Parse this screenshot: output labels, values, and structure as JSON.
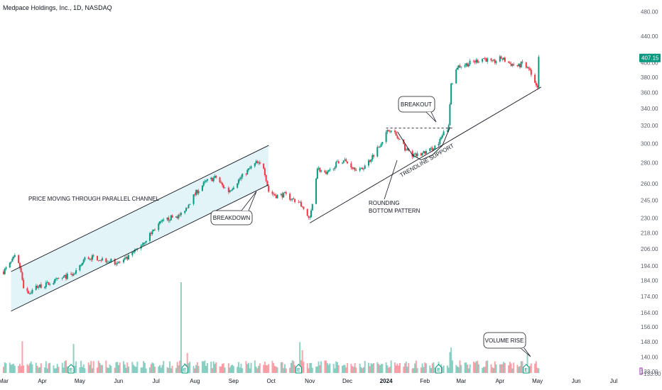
{
  "header": {
    "title": "Medpace Holdings, Inc., 1D, NASDAQ"
  },
  "colors": {
    "up": "#089981",
    "down": "#f23645",
    "channel_fill": "#e3f4f8",
    "price_tag": "#089981",
    "axis_text": "#5d606b",
    "earnings": "#089981",
    "flag": "#9c27b0"
  },
  "chart_data": {
    "type": "candlestick",
    "title": "Medpace Holdings, Inc., 1D, NASDAQ",
    "scale": "log",
    "ylim": [
      133,
      482
    ],
    "grid": false,
    "y_ticks": [
      480,
      440,
      400,
      380,
      360,
      340,
      320,
      300,
      280,
      260,
      245,
      230,
      218,
      206,
      194,
      184,
      174,
      164,
      156,
      148,
      140,
      133
    ],
    "y_tick_labels": [
      "480.00",
      "440.00",
      "400.00",
      "380.00",
      "360.00",
      "340.00",
      "320.00",
      "300.00",
      "280.00",
      "260.00",
      "245.00",
      "230.00",
      "218.00",
      "206.00",
      "194.00",
      "184.00",
      "174.00",
      "164.00",
      "156.00",
      "148.00",
      "140.00",
      "133.00"
    ],
    "x_labels": [
      {
        "label": "Mar",
        "date": "2023-03-01"
      },
      {
        "label": "Apr",
        "date": "2023-04-01"
      },
      {
        "label": "May",
        "date": "2023-05-01"
      },
      {
        "label": "Jun",
        "date": "2023-06-01"
      },
      {
        "label": "Jul",
        "date": "2023-07-01"
      },
      {
        "label": "Aug",
        "date": "2023-08-01"
      },
      {
        "label": "Sep",
        "date": "2023-09-01"
      },
      {
        "label": "Oct",
        "date": "2023-10-01"
      },
      {
        "label": "Nov",
        "date": "2023-11-01"
      },
      {
        "label": "Dec",
        "date": "2023-12-01"
      },
      {
        "label": "2024",
        "date": "2024-01-01"
      },
      {
        "label": "Feb",
        "date": "2024-02-01"
      },
      {
        "label": "Mar",
        "date": "2024-03-01"
      },
      {
        "label": "Apr",
        "date": "2024-04-01"
      },
      {
        "label": "May",
        "date": "2024-05-01"
      },
      {
        "label": "Jun",
        "date": "2024-06-01"
      },
      {
        "label": "Jul",
        "date": "2024-07-01"
      }
    ],
    "price_path": [
      [
        "2023-03-01",
        190
      ],
      [
        "2023-03-06",
        195
      ],
      [
        "2023-03-10",
        200
      ],
      [
        "2023-03-14",
        193
      ],
      [
        "2023-03-17",
        180
      ],
      [
        "2023-03-22",
        176
      ],
      [
        "2023-03-27",
        180
      ],
      [
        "2023-04-03",
        181
      ],
      [
        "2023-04-12",
        184
      ],
      [
        "2023-04-21",
        187
      ],
      [
        "2023-04-27",
        188
      ],
      [
        "2023-05-01",
        193
      ],
      [
        "2023-05-05",
        199
      ],
      [
        "2023-05-12",
        200
      ],
      [
        "2023-05-22",
        198
      ],
      [
        "2023-06-01",
        196
      ],
      [
        "2023-06-08",
        199
      ],
      [
        "2023-06-15",
        205
      ],
      [
        "2023-06-22",
        212
      ],
      [
        "2023-07-03",
        225
      ],
      [
        "2023-07-12",
        230
      ],
      [
        "2023-07-20",
        232
      ],
      [
        "2023-07-26",
        240
      ],
      [
        "2023-08-02",
        252
      ],
      [
        "2023-08-10",
        262
      ],
      [
        "2023-08-18",
        266
      ],
      [
        "2023-08-23",
        258
      ],
      [
        "2023-08-28",
        253
      ],
      [
        "2023-09-04",
        262
      ],
      [
        "2023-09-12",
        272
      ],
      [
        "2023-09-19",
        280
      ],
      [
        "2023-09-25",
        276
      ],
      [
        "2023-09-29",
        253
      ],
      [
        "2023-10-05",
        249
      ],
      [
        "2023-10-12",
        250
      ],
      [
        "2023-10-18",
        246
      ],
      [
        "2023-10-24",
        243
      ],
      [
        "2023-10-30",
        232
      ],
      [
        "2023-11-01",
        229
      ],
      [
        "2023-11-03",
        242
      ],
      [
        "2023-11-07",
        275
      ],
      [
        "2023-11-14",
        268
      ],
      [
        "2023-11-21",
        278
      ],
      [
        "2023-11-28",
        283
      ],
      [
        "2023-12-05",
        276
      ],
      [
        "2023-12-12",
        273
      ],
      [
        "2023-12-19",
        283
      ],
      [
        "2023-12-26",
        297
      ],
      [
        "2024-01-02",
        313
      ],
      [
        "2024-01-05",
        317
      ],
      [
        "2024-01-10",
        306
      ],
      [
        "2024-01-16",
        295
      ],
      [
        "2024-01-23",
        287
      ],
      [
        "2024-01-29",
        289
      ],
      [
        "2024-02-05",
        293
      ],
      [
        "2024-02-12",
        300
      ],
      [
        "2024-02-16",
        311
      ],
      [
        "2024-02-20",
        318
      ],
      [
        "2024-02-22",
        370
      ],
      [
        "2024-02-27",
        395
      ],
      [
        "2024-03-05",
        398
      ],
      [
        "2024-03-12",
        402
      ],
      [
        "2024-03-19",
        407
      ],
      [
        "2024-03-26",
        400
      ],
      [
        "2024-04-02",
        407
      ],
      [
        "2024-04-09",
        399
      ],
      [
        "2024-04-16",
        395
      ],
      [
        "2024-04-19",
        400
      ],
      [
        "2024-04-25",
        388
      ],
      [
        "2024-04-29",
        372
      ],
      [
        "2024-05-01",
        368
      ],
      [
        "2024-05-02",
        407.15
      ]
    ],
    "last_price": 407.15,
    "last_price_label": "407.15",
    "volume_spikes": [
      {
        "date": "2023-03-16",
        "level": 0.35
      },
      {
        "date": "2023-04-26",
        "level": 0.32
      },
      {
        "date": "2023-07-21",
        "level": 1.0
      },
      {
        "date": "2023-07-26",
        "level": 0.22
      },
      {
        "date": "2023-10-24",
        "level": 0.34
      },
      {
        "date": "2023-10-26",
        "level": 0.25
      },
      {
        "date": "2024-02-21",
        "level": 0.23
      },
      {
        "date": "2024-02-22",
        "level": 0.28
      },
      {
        "date": "2024-04-23",
        "level": 0.22
      }
    ],
    "earnings_markers": [
      "2023-04-24",
      "2023-07-24",
      "2023-10-23",
      "2024-02-12",
      "2024-04-22"
    ],
    "earnings_label": "E",
    "annotations": [
      {
        "name": "channel-label",
        "text": "PRICE MOVING THROUGH PARALLEL CHANNEL"
      },
      {
        "name": "breakdown-label",
        "text": "BREAKDOWN"
      },
      {
        "name": "rounding-label",
        "lines": [
          "ROUNDING",
          "BOTTOM PATTERN"
        ]
      },
      {
        "name": "trendline-label",
        "text": "TRENDLINE SUPPORT"
      },
      {
        "name": "breakout-label",
        "text": "BREAKOUT"
      },
      {
        "name": "volume-rise-label",
        "text": "VOLUME RISE"
      }
    ],
    "drawings": {
      "channel_upper": [
        [
          "2023-03-07",
          190
        ],
        [
          "2023-09-29",
          298
        ]
      ],
      "channel_lower": [
        [
          "2023-03-07",
          165
        ],
        [
          "2023-09-29",
          259
        ]
      ],
      "trendline": [
        [
          "2023-11-01",
          226
        ],
        [
          "2024-05-04",
          367
        ]
      ],
      "resistance": [
        [
          "2024-01-01",
          317
        ],
        [
          "2024-02-23",
          317
        ]
      ],
      "rounding_arc": [
        [
          "2024-01-10",
          313
        ],
        [
          "2024-01-22",
          288
        ],
        [
          "2024-01-29",
          283
        ],
        [
          "2024-02-07",
          288
        ],
        [
          "2024-02-15",
          298
        ],
        [
          "2024-02-21",
          318
        ]
      ]
    }
  }
}
